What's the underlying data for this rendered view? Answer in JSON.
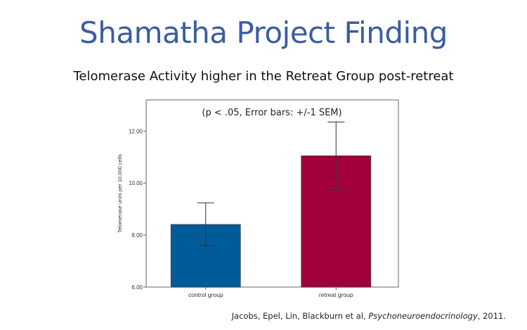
{
  "slide": {
    "title": "Shamatha Project Finding",
    "subtitle": "Telomerase Activity higher in the Retreat Group post-retreat",
    "citation_prefix": "Jacobs, Epel, Lin, Blackburn et al, ",
    "citation_journal": "Psychoneuroendocrinology",
    "citation_suffix": ", 2011."
  },
  "chart_data": {
    "type": "bar",
    "title": "",
    "annotation": "(p < .05, Error bars: +/-1 SEM)",
    "categories": [
      "control group",
      "retreat group"
    ],
    "values": [
      8.41,
      11.05
    ],
    "error_low": [
      7.6,
      9.74
    ],
    "error_high": [
      9.24,
      12.35
    ],
    "colors": [
      "#005b9a",
      "#a1003a"
    ],
    "xlabel": "",
    "ylabel": "Telomerase units per 10,000 cells",
    "ylim": [
      6,
      13.2
    ],
    "yticks": [
      6,
      8,
      10,
      12
    ],
    "ytick_labels": [
      "6.00",
      "8.00",
      "10.00",
      "12.00"
    ],
    "grid": false
  }
}
